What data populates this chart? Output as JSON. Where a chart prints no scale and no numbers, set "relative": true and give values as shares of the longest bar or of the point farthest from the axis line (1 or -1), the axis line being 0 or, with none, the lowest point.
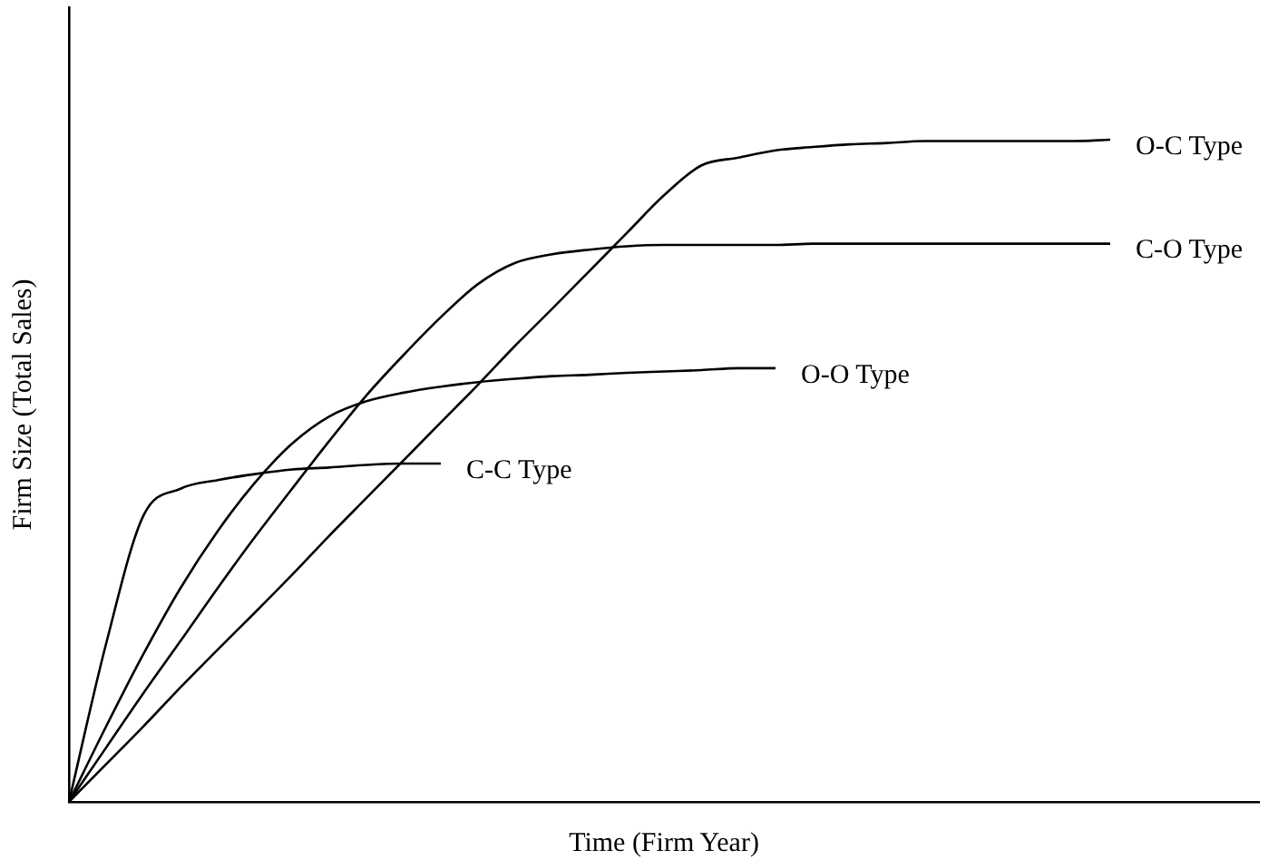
{
  "chart_data": {
    "type": "line",
    "relative": true,
    "xlabel": "Time (Firm Year)",
    "ylabel": "Firm Size (Total Sales)",
    "legend": false,
    "grid": false,
    "marker": "none",
    "line_style": "solid",
    "categories": [
      null,
      null,
      null,
      null,
      null,
      null,
      null,
      null,
      null,
      null,
      null,
      null,
      null,
      null,
      null,
      null,
      null,
      null,
      null,
      null,
      null,
      null,
      null,
      null,
      null,
      null,
      null,
      null,
      null,
      null,
      null,
      null,
      null
    ],
    "series": [
      {
        "name": "O-C Type",
        "color": "#000000",
        "values": [
          0,
          0.057,
          0.114,
          0.173,
          0.23,
          0.286,
          0.343,
          0.402,
          0.459,
          0.516,
          0.573,
          0.63,
          0.689,
          0.745,
          0.802,
          0.859,
          0.916,
          0.961,
          0.973,
          0.984,
          0.989,
          0.993,
          0.995,
          0.998,
          0.998,
          0.998,
          0.998,
          0.998,
          1,
          null,
          null,
          null,
          null
        ]
      },
      {
        "name": "C-O Type",
        "color": "#000000",
        "values": [
          0,
          0.082,
          0.164,
          0.243,
          0.323,
          0.4,
          0.473,
          0.545,
          0.614,
          0.675,
          0.732,
          0.782,
          0.814,
          0.827,
          0.834,
          0.839,
          0.841,
          0.841,
          0.841,
          0.841,
          0.843,
          0.843,
          0.843,
          0.843,
          0.843,
          0.843,
          0.843,
          0.843,
          0.843,
          null,
          null,
          null,
          null
        ]
      },
      {
        "name": "O-O Type",
        "color": "#000000",
        "values": [
          0,
          0.114,
          0.223,
          0.323,
          0.409,
          0.482,
          0.541,
          0.582,
          0.605,
          0.618,
          0.627,
          0.634,
          0.639,
          0.643,
          0.645,
          0.648,
          0.65,
          0.652,
          0.655,
          0.655,
          null,
          null,
          null,
          null,
          null,
          null,
          null,
          null,
          null,
          null,
          null,
          null,
          null
        ]
      },
      {
        "name": "C-C Type",
        "color": "#000000",
        "values": [
          0,
          0.239,
          0.432,
          0.473,
          0.486,
          0.495,
          0.502,
          0.505,
          0.509,
          0.511,
          0.511,
          null,
          null,
          null,
          null,
          null,
          null,
          null,
          null,
          null,
          null,
          null,
          null,
          null,
          null,
          null,
          null,
          null,
          null,
          null,
          null,
          null,
          null
        ]
      }
    ]
  }
}
